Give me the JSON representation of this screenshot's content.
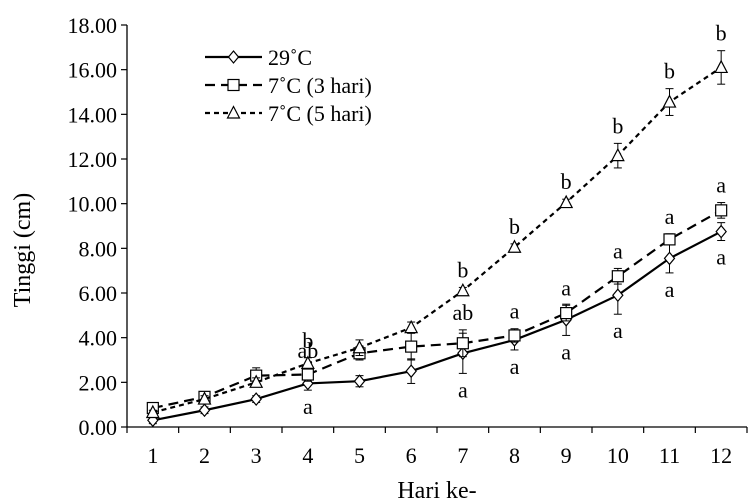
{
  "chart_data": {
    "type": "line",
    "xlabel": "Hari ke-",
    "ylabel": "Tinggi (cm)",
    "x": [
      1,
      2,
      3,
      4,
      5,
      6,
      7,
      8,
      9,
      10,
      11,
      12
    ],
    "x_tick_labels": [
      "1",
      "2",
      "3",
      "4",
      "5",
      "6",
      "7",
      "8",
      "9",
      "10",
      "11",
      "12"
    ],
    "ylim": [
      0,
      18
    ],
    "y_tick_labels": [
      "0.00",
      "2.00",
      "4.00",
      "6.00",
      "8.00",
      "10.00",
      "12.00",
      "14.00",
      "16.00",
      "18.00"
    ],
    "grid": false,
    "legend_position": "top-left",
    "series": [
      {
        "name": "29˚C",
        "marker": "diamond",
        "line": "solid",
        "values": [
          0.3,
          0.75,
          1.25,
          1.95,
          2.05,
          2.5,
          3.3,
          3.9,
          4.8,
          5.9,
          7.55,
          8.75
        ],
        "errors": [
          0.15,
          0.15,
          0.15,
          0.3,
          0.25,
          0.55,
          0.9,
          0.45,
          0.7,
          0.85,
          0.65,
          0.4
        ],
        "annotations": [
          "",
          "",
          "",
          "a",
          "",
          "",
          "a",
          "a",
          "a",
          "a",
          "a",
          "a"
        ]
      },
      {
        "name": "7˚C (3 hari)",
        "marker": "square",
        "line": "dashed",
        "values": [
          0.85,
          1.35,
          2.3,
          2.35,
          3.3,
          3.6,
          3.75,
          4.1,
          5.1,
          6.75,
          8.4,
          9.7
        ],
        "errors": [
          0.15,
          0.2,
          0.35,
          0.3,
          0.3,
          0.6,
          0.6,
          0.3,
          0.35,
          0.35,
          0.25,
          0.35
        ],
        "annotations": [
          "",
          "",
          "",
          "ab",
          "",
          "",
          "ab",
          "a",
          "a",
          "a",
          "a",
          "a"
        ]
      },
      {
        "name": "7˚C (5 hari)",
        "marker": "triangle",
        "line": "dotted",
        "values": [
          0.65,
          1.25,
          2.0,
          2.85,
          3.55,
          4.45,
          6.1,
          8.05,
          10.05,
          12.15,
          14.55,
          16.1
        ],
        "errors": [
          0.1,
          0.15,
          0.2,
          0.25,
          0.35,
          0.25,
          0.15,
          0.15,
          0.15,
          0.55,
          0.6,
          0.75
        ],
        "annotations": [
          "",
          "",
          "",
          "b",
          "",
          "",
          "b",
          "b",
          "b",
          "b",
          "b",
          "b"
        ]
      }
    ]
  }
}
